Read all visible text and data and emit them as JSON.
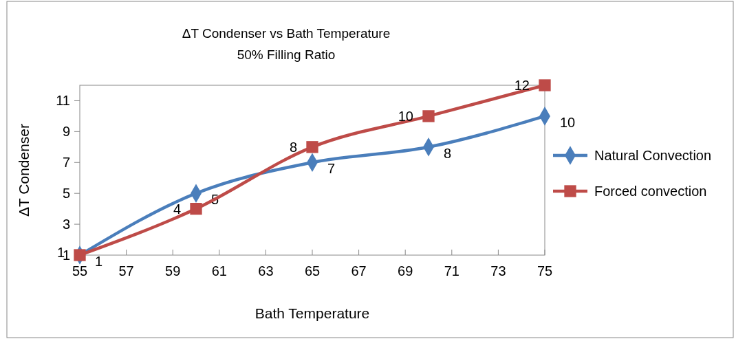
{
  "chart_data": {
    "type": "line",
    "title": "ΔT Condenser vs Bath Temperature",
    "subtitle": "50% Filling Ratio",
    "xlabel": "Bath Temperature",
    "ylabel": "ΔT Condenser",
    "x": [
      55,
      60,
      65,
      70,
      75
    ],
    "series": [
      {
        "name": "Natural Convection",
        "color": "#4a7ebb",
        "values": [
          1,
          5,
          7,
          8,
          10
        ],
        "marker": "diamond"
      },
      {
        "name": "Forced convection",
        "color": "#be4b48",
        "values": [
          1,
          4,
          8,
          10,
          12
        ],
        "marker": "square"
      }
    ],
    "xlim": [
      55,
      75
    ],
    "xticks": [
      55,
      57,
      59,
      61,
      63,
      65,
      67,
      69,
      71,
      73,
      75
    ],
    "ylim": [
      1,
      12
    ],
    "yticks": [
      1,
      3,
      5,
      7,
      9,
      11
    ],
    "grid": false,
    "legend": "right",
    "data_labels": true
  }
}
